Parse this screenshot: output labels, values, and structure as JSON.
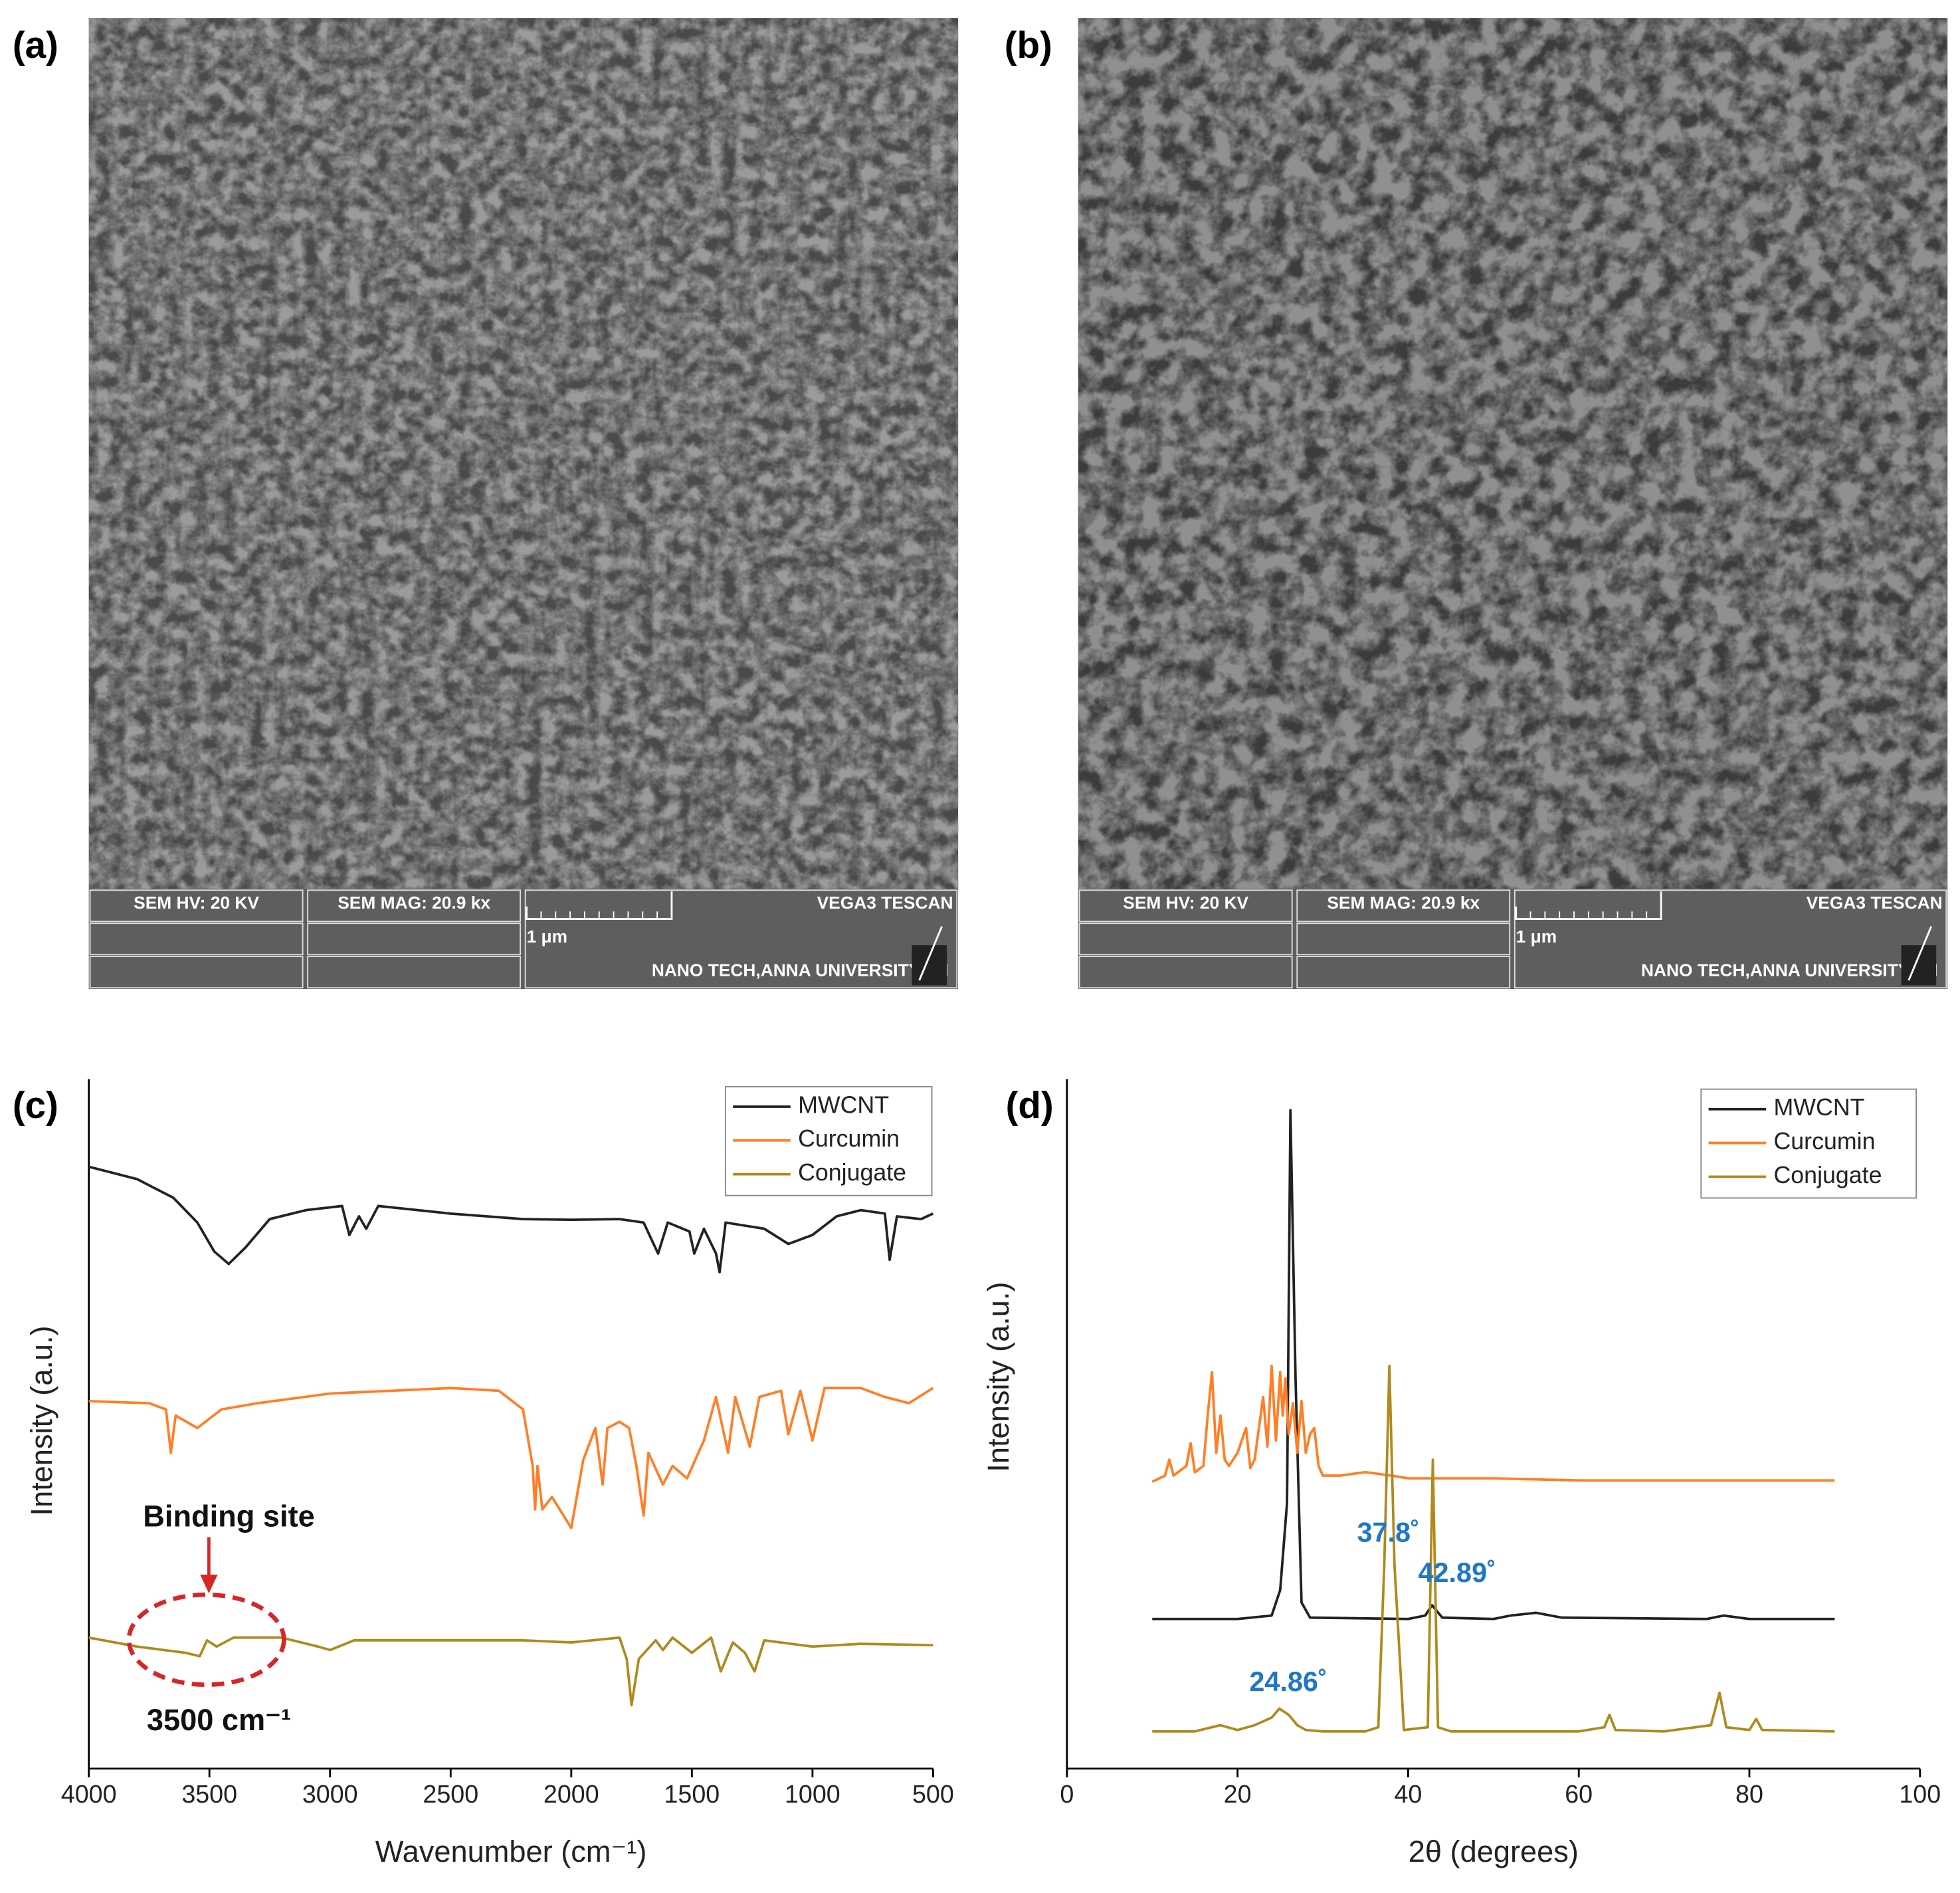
{
  "panel_labels": [
    "(a)",
    "(b)",
    "(c)",
    "(d)"
  ],
  "sem_panels": [
    {
      "hv": "SEM HV: 20 KV",
      "mag": "SEM MAG: 20.9 kx",
      "brand": "VEGA3 TESCAN",
      "scale": "1 μm",
      "lab": "NANO TECH,ANNA UNIVERSITY,CH"
    },
    {
      "hv": "SEM HV: 20 KV",
      "mag": "SEM MAG: 20.9 kx",
      "brand": "VEGA3 TESCAN",
      "scale": "1 μm",
      "lab": "NANO TECH,ANNA UNIVERSITY,CH"
    }
  ],
  "chart_data": [
    {
      "type": "line",
      "x_label": "Wavenumber (cm⁻¹)",
      "y_label": "Intensity (a.u.)",
      "xlim": [
        4000,
        500
      ],
      "xticks": [
        4000,
        3500,
        3000,
        2500,
        2000,
        1500,
        1000,
        500
      ],
      "ylim": [
        0,
        100
      ],
      "legend": "upper right",
      "annotations": [
        "Binding site",
        "3500 cm⁻¹"
      ],
      "series": [
        {
          "name": "MWCNT",
          "color": "#222222",
          "x": [
            4000,
            3800,
            3650,
            3550,
            3480,
            3420,
            3350,
            3250,
            3100,
            2950,
            2920,
            2880,
            2850,
            2800,
            2500,
            2200,
            2000,
            1800,
            1700,
            1640,
            1600,
            1510,
            1490,
            1450,
            1400,
            1385,
            1360,
            1200,
            1100,
            1000,
            900,
            800,
            700,
            680,
            650,
            550,
            500
          ],
          "values": [
            87.3,
            85.5,
            82.8,
            79.2,
            75.0,
            73.2,
            75.6,
            79.7,
            81.0,
            81.6,
            77.4,
            80.1,
            78.3,
            81.6,
            80.5,
            79.7,
            79.6,
            79.7,
            79.2,
            74.7,
            79.2,
            77.9,
            74.7,
            78.3,
            74.7,
            72.0,
            79.2,
            78.3,
            76.1,
            77.4,
            80.1,
            81.0,
            80.5,
            73.8,
            80.1,
            79.7,
            80.5
          ]
        },
        {
          "name": "Curcumin",
          "color": "#ff7f27",
          "x": [
            4000,
            3750,
            3680,
            3660,
            3640,
            3550,
            3450,
            3300,
            3000,
            2500,
            2300,
            2200,
            2160,
            2150,
            2140,
            2120,
            2080,
            2000,
            1950,
            1900,
            1870,
            1850,
            1800,
            1760,
            1730,
            1700,
            1680,
            1620,
            1580,
            1520,
            1450,
            1400,
            1350,
            1320,
            1260,
            1220,
            1130,
            1100,
            1050,
            1000,
            950,
            800,
            700,
            600,
            500
          ],
          "values": [
            53.3,
            53.0,
            52.1,
            45.8,
            51.2,
            49.4,
            52.1,
            53.0,
            54.4,
            55.2,
            54.8,
            52.1,
            43.9,
            37.6,
            43.9,
            37.6,
            39.4,
            34.9,
            44.8,
            49.4,
            41.2,
            49.4,
            50.3,
            49.4,
            43.9,
            36.7,
            45.8,
            41.2,
            43.9,
            42.1,
            47.6,
            53.9,
            45.8,
            53.9,
            46.7,
            53.9,
            54.8,
            48.5,
            54.8,
            47.6,
            55.2,
            55.2,
            53.9,
            53.0,
            55.2
          ]
        },
        {
          "name": "Conjugate",
          "color": "#b08a1e",
          "x": [
            4000,
            3800,
            3600,
            3540,
            3510,
            3470,
            3400,
            3200,
            3050,
            3000,
            2900,
            2500,
            2200,
            2000,
            1800,
            1770,
            1750,
            1720,
            1650,
            1620,
            1580,
            1500,
            1420,
            1380,
            1330,
            1280,
            1240,
            1200,
            1000,
            800,
            500
          ],
          "values": [
            19.0,
            17.7,
            16.8,
            16.3,
            18.6,
            17.7,
            19.0,
            19.0,
            17.7,
            17.2,
            18.6,
            18.6,
            18.6,
            18.3,
            19.0,
            15.9,
            9.2,
            15.9,
            18.6,
            17.2,
            19.0,
            16.8,
            19.0,
            14.1,
            18.3,
            16.8,
            14.1,
            18.6,
            17.7,
            18.1,
            17.9
          ]
        }
      ]
    },
    {
      "type": "line",
      "x_label": "2θ (degrees)",
      "y_label": "Intensity (a.u.)",
      "xlim": [
        0,
        100
      ],
      "xticks": [
        0,
        20,
        40,
        60,
        80,
        100
      ],
      "ylim": [
        0,
        100
      ],
      "legend": "upper right",
      "annotations": [
        "37.8˚",
        "42.89˚",
        "24.86˚"
      ],
      "series": [
        {
          "name": "MWCNT",
          "color": "#222222",
          "x": [
            10,
            20,
            24,
            25,
            25.8,
            26.2,
            26.8,
            27.5,
            28.5,
            40,
            42,
            42.8,
            44,
            50,
            52,
            55,
            58,
            75,
            77,
            80,
            90
          ],
          "values": [
            21.7,
            21.7,
            22.2,
            25.9,
            38.5,
            95.5,
            56.6,
            24.1,
            21.9,
            21.7,
            22.2,
            23.7,
            21.9,
            21.7,
            22.2,
            22.6,
            21.9,
            21.7,
            22.2,
            21.7,
            21.7
          ]
        },
        {
          "name": "Curcumin",
          "color": "#ff7f27",
          "x": [
            10,
            11.5,
            12,
            12.5,
            14,
            14.5,
            15,
            16,
            16.5,
            17,
            17.5,
            18,
            18.5,
            19,
            20,
            21,
            21.5,
            22,
            23,
            23.5,
            24,
            24.5,
            25,
            25.3,
            25.6,
            26,
            26.5,
            27,
            27.5,
            28,
            28.5,
            29,
            29.5,
            30,
            32,
            35,
            38,
            40,
            50,
            60,
            70,
            80,
            90
          ],
          "values": [
            41.6,
            42.5,
            44.8,
            42.5,
            43.9,
            47.2,
            43.0,
            43.9,
            51.2,
            57.5,
            45.8,
            51.2,
            44.8,
            43.9,
            45.8,
            49.4,
            43.6,
            44.8,
            53.9,
            46.7,
            58.4,
            47.6,
            57.5,
            51.2,
            56.6,
            48.5,
            53.0,
            45.8,
            53.3,
            45.8,
            48.5,
            49.4,
            43.9,
            42.5,
            42.5,
            43.0,
            42.5,
            42.1,
            42.1,
            41.8,
            41.8,
            41.8,
            41.8
          ]
        },
        {
          "name": "Conjugate",
          "color": "#b08a1e",
          "x": [
            10,
            15,
            18,
            20,
            22,
            24,
            24.9,
            26,
            27,
            28,
            30,
            35,
            36.5,
            37.2,
            37.8,
            38.4,
            39.5,
            42.3,
            42.89,
            43.5,
            45,
            60,
            63,
            63.6,
            64.3,
            70,
            75.5,
            76.5,
            77.3,
            80,
            80.8,
            81.5,
            90
          ],
          "values": [
            5.4,
            5.4,
            6.3,
            5.6,
            6.3,
            7.4,
            8.7,
            7.8,
            6.3,
            5.6,
            5.4,
            5.4,
            6.0,
            29.5,
            58.4,
            29.5,
            5.6,
            6.0,
            44.8,
            6.0,
            5.4,
            5.4,
            6.0,
            7.8,
            5.6,
            5.4,
            6.3,
            11.0,
            6.0,
            5.6,
            7.2,
            5.6,
            5.4
          ]
        }
      ]
    }
  ]
}
